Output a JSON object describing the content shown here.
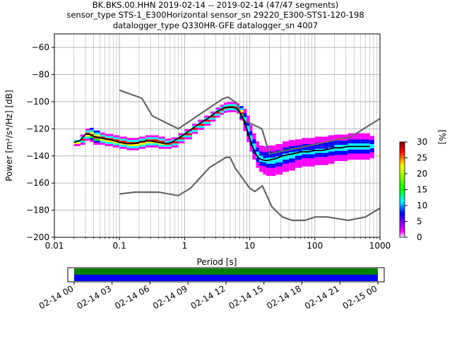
{
  "chart_data": [
    {
      "type": "heatmap",
      "title_lines": [
        "BK.BKS.00.HHN   2019-02-14 -- 2019-02-14  (47/47 segments)",
        "sensor_type STS-1_E300Horizontal sensor_sn 29220_E300-STS1-120-198",
        "datalogger_type Q330HR-GFE datalogger_sn 4007"
      ],
      "xlabel": "Period [s]",
      "ylabel": "Power [m²/s⁴/Hz] [dB]",
      "xscale": "log",
      "xlim": [
        0.01,
        1000
      ],
      "ylim": [
        -200,
        -50
      ],
      "xticks": [
        {
          "v": 0.01,
          "label": "0.01"
        },
        {
          "v": 0.1,
          "label": "0.1"
        },
        {
          "v": 1,
          "label": "1"
        },
        {
          "v": 10,
          "label": "10"
        },
        {
          "v": 100,
          "label": "100"
        },
        {
          "v": 1000,
          "label": "1000"
        }
      ],
      "yticks": [
        {
          "v": -60,
          "label": "−60"
        },
        {
          "v": -80,
          "label": "−80"
        },
        {
          "v": -100,
          "label": "−100"
        },
        {
          "v": -120,
          "label": "−120"
        },
        {
          "v": -140,
          "label": "−140"
        },
        {
          "v": -160,
          "label": "−160"
        },
        {
          "v": -180,
          "label": "−180"
        },
        {
          "v": -200,
          "label": "−200"
        }
      ],
      "grid": true,
      "noise_models": {
        "high": {
          "x": [
            0.1,
            0.22,
            0.32,
            0.8,
            3.8,
            4.6,
            6.3,
            7.9,
            15.4,
            20,
            354.8,
            1000
          ],
          "y": [
            -91.5,
            -97.4,
            -110.5,
            -120.0,
            -98.0,
            -96.5,
            -101.0,
            -113.5,
            -120.0,
            -138.5,
            -126.0,
            -112.5
          ]
        },
        "low": {
          "x": [
            0.1,
            0.17,
            0.4,
            0.8,
            1.24,
            2.4,
            4.3,
            5.0,
            6.0,
            10.0,
            12.0,
            15.6,
            21.9,
            31.6,
            45,
            70,
            101,
            154,
            328,
            600,
            1000
          ],
          "y": [
            -168.0,
            -166.7,
            -166.7,
            -169.2,
            -163.7,
            -148.6,
            -141.1,
            -141.1,
            -149.0,
            -163.8,
            -166.2,
            -162.1,
            -177.5,
            -185.0,
            -187.5,
            -187.5,
            -185.0,
            -185.0,
            -187.5,
            -185.0,
            -178.5
          ]
        }
      },
      "psd_distribution": {
        "x": [
          0.02,
          0.025,
          0.03,
          0.035,
          0.04,
          0.05,
          0.06,
          0.08,
          0.1,
          0.13,
          0.16,
          0.2,
          0.25,
          0.3,
          0.4,
          0.5,
          0.63,
          0.8,
          1,
          1.3,
          1.6,
          2,
          2.5,
          3,
          3.5,
          4,
          4.5,
          5,
          5.5,
          6.3,
          7,
          8,
          9,
          10,
          11,
          12.5,
          14,
          16,
          18,
          20,
          25,
          32,
          40,
          50,
          63,
          80,
          100,
          130,
          160,
          200,
          250,
          320,
          400,
          500,
          600,
          700
        ],
        "center": [
          -130,
          -128,
          -124,
          -124,
          -126,
          -127,
          -128,
          -129,
          -130,
          -131,
          -131,
          -130,
          -129,
          -129,
          -130,
          -131,
          -130,
          -127,
          -124,
          -120,
          -117,
          -114,
          -111,
          -108,
          -106,
          -104.5,
          -104,
          -104,
          -104,
          -105,
          -108,
          -113,
          -120,
          -127,
          -133,
          -139,
          -142,
          -143,
          -143,
          -143,
          -142,
          -140,
          -139,
          -138,
          -137,
          -137,
          -136,
          -136,
          -135,
          -134,
          -134,
          -133,
          -133,
          -133,
          -133,
          -133
        ],
        "half_width": [
          2,
          3,
          4,
          5,
          5,
          4,
          4,
          4,
          4,
          4,
          4,
          4,
          4,
          4,
          4,
          3,
          3,
          3,
          3,
          3,
          3,
          3,
          3,
          3,
          3,
          3,
          3,
          3,
          3,
          3,
          5,
          8,
          9,
          9,
          9,
          9,
          9,
          10,
          11,
          11,
          11,
          11,
          11,
          10,
          10,
          10,
          10,
          10,
          10,
          9,
          9,
          9,
          9,
          9,
          9,
          8
        ]
      },
      "mean_curve": {
        "x": [
          0.02,
          0.025,
          0.03,
          0.035,
          0.04,
          0.05,
          0.06,
          0.08,
          0.1,
          0.13,
          0.16,
          0.2,
          0.25,
          0.3,
          0.4,
          0.5,
          0.63,
          0.8,
          1,
          1.3,
          1.6,
          2,
          2.5,
          3,
          3.5,
          4,
          4.5,
          5,
          5.5,
          6.3,
          7,
          8,
          9,
          10,
          11,
          12.5,
          14,
          16,
          18,
          20,
          25,
          32,
          40,
          50,
          63,
          80,
          100,
          130,
          160,
          200,
          250,
          320,
          400,
          500,
          600,
          700
        ],
        "y": [
          -130,
          -128.5,
          -124,
          -124,
          -125.5,
          -126.5,
          -127.5,
          -128.5,
          -130,
          -131,
          -131,
          -130,
          -129,
          -129,
          -130,
          -131,
          -130,
          -127,
          -124,
          -120,
          -117,
          -114,
          -111,
          -108,
          -106,
          -104.5,
          -104,
          -104,
          -104,
          -105,
          -108,
          -113,
          -120,
          -127,
          -133,
          -139,
          -142,
          -143,
          -143.5,
          -143,
          -142,
          -140,
          -139,
          -138,
          -137,
          -137,
          -136,
          -136,
          -135,
          -134,
          -134,
          -133,
          -133,
          -133,
          -133,
          -133
        ]
      },
      "colorbar": {
        "label": "[%]",
        "range": [
          0,
          30
        ],
        "ticks": [
          {
            "v": 0,
            "label": "0"
          },
          {
            "v": 5,
            "label": "5"
          },
          {
            "v": 10,
            "label": "10"
          },
          {
            "v": 15,
            "label": "15"
          },
          {
            "v": 20,
            "label": "20"
          },
          {
            "v": 25,
            "label": "25"
          },
          {
            "v": 30,
            "label": "30"
          }
        ],
        "colors": [
          "#ffffff",
          "#ff00ff",
          "#0000ff",
          "#00ffff",
          "#00ff00",
          "#ffff00",
          "#ff0000",
          "#800000"
        ]
      }
    },
    {
      "type": "timeline",
      "xticks": [
        "02-14 00",
        "02-14 03",
        "02-14 06",
        "02-14 09",
        "02-14 12",
        "02-14 15",
        "02-14 18",
        "02-14 21",
        "02-15 00"
      ],
      "xrange_hours": [
        -0.5,
        24.5
      ],
      "bands": [
        {
          "color": "#008000",
          "start_hour": 0,
          "end_hour": 24
        },
        {
          "color": "#0000ff",
          "start_hour": 0,
          "end_hour": 24
        }
      ]
    }
  ]
}
